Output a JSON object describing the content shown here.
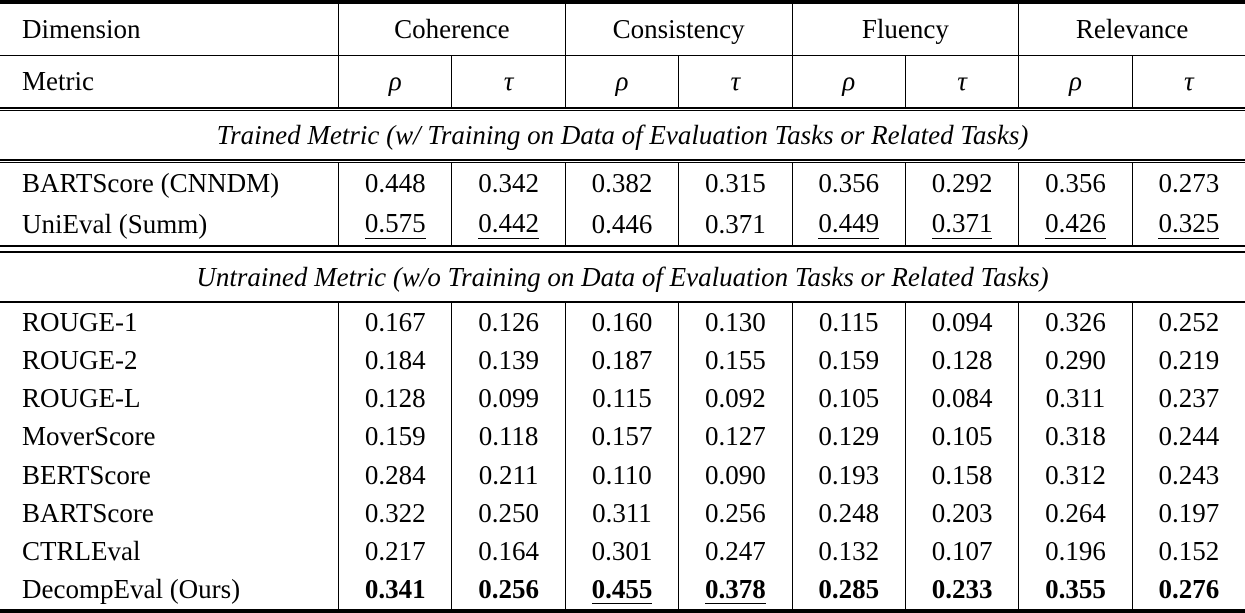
{
  "table": {
    "header": {
      "dimension_label": "Dimension",
      "metric_label": "Metric",
      "groups": [
        "Coherence",
        "Consistency",
        "Fluency",
        "Relevance"
      ],
      "metric_symbols": [
        "ρ",
        "τ",
        "ρ",
        "τ",
        "ρ",
        "τ",
        "ρ",
        "τ"
      ]
    },
    "sections": [
      {
        "title": "Trained Metric (w/ Training on Data of Evaluation Tasks or Related Tasks)",
        "rows": [
          {
            "name": "BARTScore (CNNDM)",
            "values": [
              {
                "v": "0.448"
              },
              {
                "v": "0.342"
              },
              {
                "v": "0.382"
              },
              {
                "v": "0.315"
              },
              {
                "v": "0.356"
              },
              {
                "v": "0.292"
              },
              {
                "v": "0.356"
              },
              {
                "v": "0.273"
              }
            ]
          },
          {
            "name": "UniEval (Summ)",
            "values": [
              {
                "v": "0.575",
                "u": true
              },
              {
                "v": "0.442",
                "u": true
              },
              {
                "v": "0.446"
              },
              {
                "v": "0.371"
              },
              {
                "v": "0.449",
                "u": true
              },
              {
                "v": "0.371",
                "u": true
              },
              {
                "v": "0.426",
                "u": true
              },
              {
                "v": "0.325",
                "u": true
              }
            ]
          }
        ]
      },
      {
        "title": "Untrained Metric (w/o Training on Data of Evaluation Tasks or Related Tasks)",
        "rows": [
          {
            "name": "ROUGE-1",
            "values": [
              {
                "v": "0.167"
              },
              {
                "v": "0.126"
              },
              {
                "v": "0.160"
              },
              {
                "v": "0.130"
              },
              {
                "v": "0.115"
              },
              {
                "v": "0.094"
              },
              {
                "v": "0.326"
              },
              {
                "v": "0.252"
              }
            ]
          },
          {
            "name": "ROUGE-2",
            "values": [
              {
                "v": "0.184"
              },
              {
                "v": "0.139"
              },
              {
                "v": "0.187"
              },
              {
                "v": "0.155"
              },
              {
                "v": "0.159"
              },
              {
                "v": "0.128"
              },
              {
                "v": "0.290"
              },
              {
                "v": "0.219"
              }
            ]
          },
          {
            "name": "ROUGE-L",
            "values": [
              {
                "v": "0.128"
              },
              {
                "v": "0.099"
              },
              {
                "v": "0.115"
              },
              {
                "v": "0.092"
              },
              {
                "v": "0.105"
              },
              {
                "v": "0.084"
              },
              {
                "v": "0.311"
              },
              {
                "v": "0.237"
              }
            ]
          },
          {
            "name": "MoverScore",
            "values": [
              {
                "v": "0.159"
              },
              {
                "v": "0.118"
              },
              {
                "v": "0.157"
              },
              {
                "v": "0.127"
              },
              {
                "v": "0.129"
              },
              {
                "v": "0.105"
              },
              {
                "v": "0.318"
              },
              {
                "v": "0.244"
              }
            ]
          },
          {
            "name": "BERTScore",
            "values": [
              {
                "v": "0.284"
              },
              {
                "v": "0.211"
              },
              {
                "v": "0.110"
              },
              {
                "v": "0.090"
              },
              {
                "v": "0.193"
              },
              {
                "v": "0.158"
              },
              {
                "v": "0.312"
              },
              {
                "v": "0.243"
              }
            ]
          },
          {
            "name": "BARTScore",
            "values": [
              {
                "v": "0.322"
              },
              {
                "v": "0.250"
              },
              {
                "v": "0.311"
              },
              {
                "v": "0.256"
              },
              {
                "v": "0.248"
              },
              {
                "v": "0.203"
              },
              {
                "v": "0.264"
              },
              {
                "v": "0.197"
              }
            ]
          },
          {
            "name": "CTRLEval",
            "values": [
              {
                "v": "0.217"
              },
              {
                "v": "0.164"
              },
              {
                "v": "0.301"
              },
              {
                "v": "0.247"
              },
              {
                "v": "0.132"
              },
              {
                "v": "0.107"
              },
              {
                "v": "0.196"
              },
              {
                "v": "0.152"
              }
            ]
          },
          {
            "name": "DecompEval (Ours)",
            "values": [
              {
                "v": "0.341",
                "b": true
              },
              {
                "v": "0.256",
                "b": true
              },
              {
                "v": "0.455",
                "b": true,
                "u": true
              },
              {
                "v": "0.378",
                "b": true,
                "u": true
              },
              {
                "v": "0.285",
                "b": true
              },
              {
                "v": "0.233",
                "b": true
              },
              {
                "v": "0.355",
                "b": true
              },
              {
                "v": "0.276",
                "b": true
              }
            ]
          }
        ]
      }
    ]
  }
}
